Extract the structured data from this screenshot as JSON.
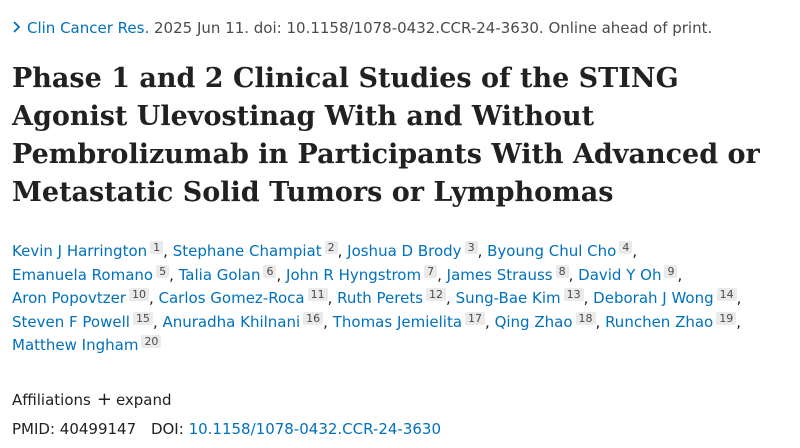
{
  "citation": {
    "journal": "Clin Cancer Res.",
    "details": " 2025 Jun 11. doi: 10.1158/1078-0432.CCR-24-3630. Online ahead of print.",
    "chevron_icon": "chevron-right-icon"
  },
  "title": "Phase 1 and 2 Clinical Studies of the STING Agonist Ulevostinag With and Without Pembrolizumab in Participants With Advanced or Metastatic Solid Tumors or Lymphomas",
  "authors": [
    {
      "name": "Kevin J Harrington",
      "aff": "1"
    },
    {
      "name": "Stephane Champiat",
      "aff": "2"
    },
    {
      "name": "Joshua D Brody",
      "aff": "3"
    },
    {
      "name": "Byoung Chul Cho",
      "aff": "4"
    },
    {
      "name": "Emanuela Romano",
      "aff": "5"
    },
    {
      "name": "Talia Golan",
      "aff": "6"
    },
    {
      "name": "John R Hyngstrom",
      "aff": "7"
    },
    {
      "name": "James Strauss",
      "aff": "8"
    },
    {
      "name": "David Y Oh",
      "aff": "9"
    },
    {
      "name": "Aron Popovtzer",
      "aff": "10"
    },
    {
      "name": "Carlos Gomez-Roca",
      "aff": "11"
    },
    {
      "name": "Ruth Perets",
      "aff": "12"
    },
    {
      "name": "Sung-Bae Kim",
      "aff": "13"
    },
    {
      "name": "Deborah J Wong",
      "aff": "14"
    },
    {
      "name": "Steven F Powell",
      "aff": "15"
    },
    {
      "name": "Anuradha Khilnani",
      "aff": "16"
    },
    {
      "name": "Thomas Jemielita",
      "aff": "17"
    },
    {
      "name": "Qing Zhao",
      "aff": "18"
    },
    {
      "name": "Runchen Zhao",
      "aff": "19"
    },
    {
      "name": "Matthew Ingham",
      "aff": "20"
    }
  ],
  "affiliations": {
    "label": "Affiliations",
    "plus_icon": "plus-icon",
    "expand": "expand"
  },
  "ids": {
    "pmid_label": "PMID:",
    "pmid": "40499147",
    "doi_label": "DOI:",
    "doi": "10.1158/1078-0432.CCR-24-3630"
  },
  "colors": {
    "link": "#0071bc",
    "text": "#212121",
    "muted": "#4a4a4a",
    "badge_bg": "#eaeaea"
  }
}
